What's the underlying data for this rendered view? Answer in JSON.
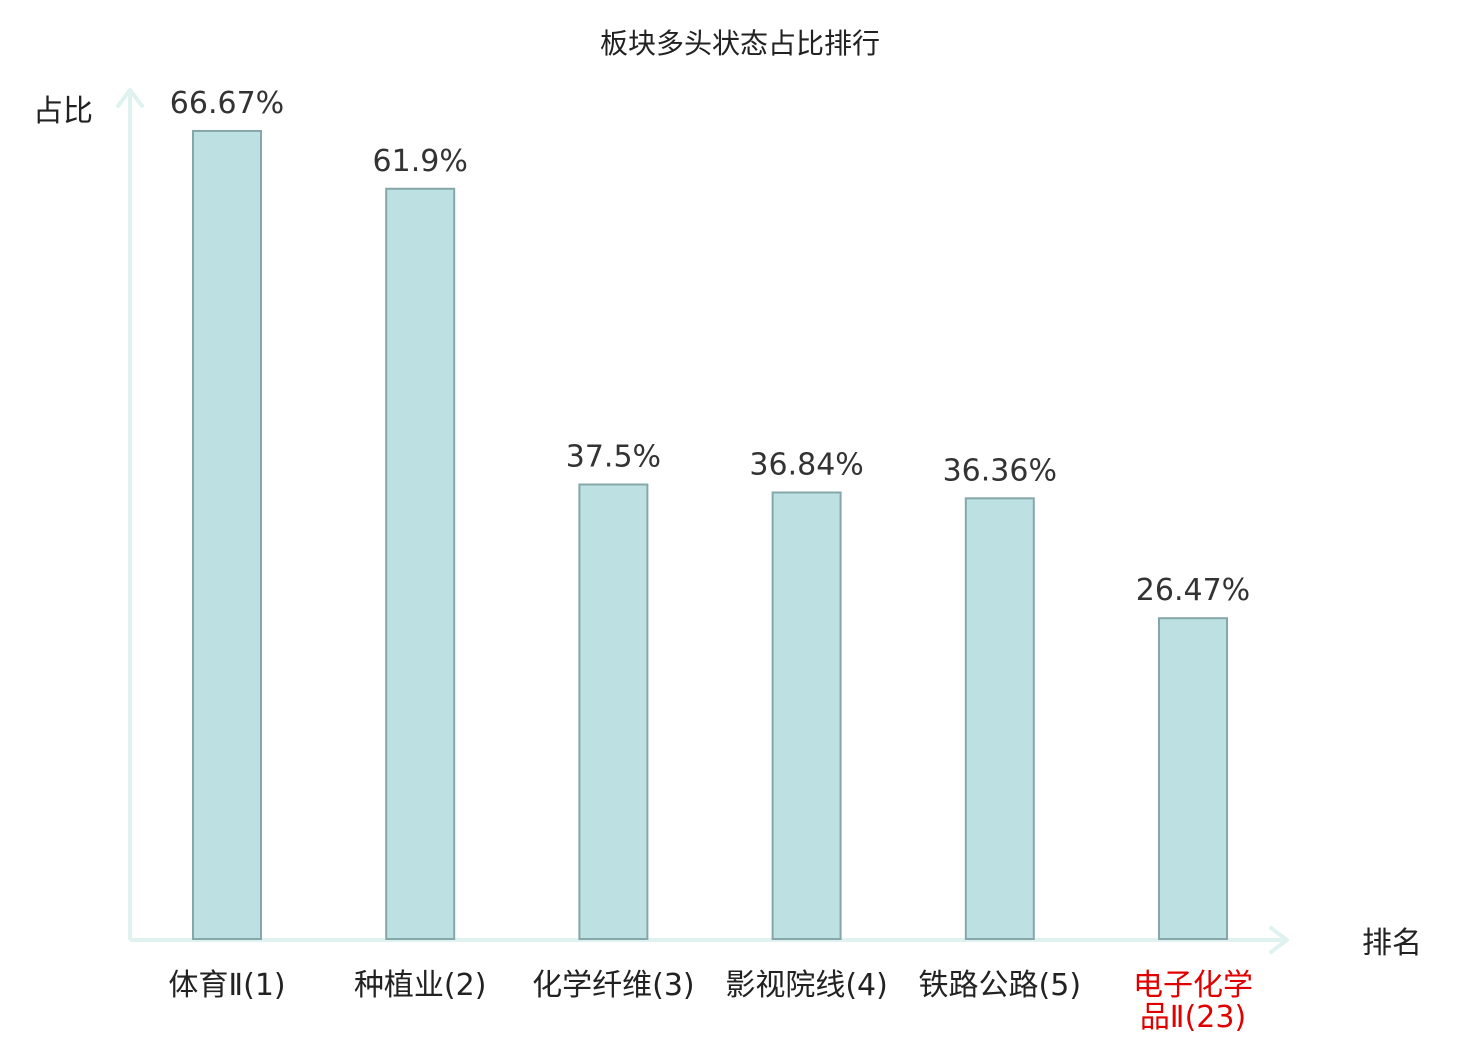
{
  "chart_data": {
    "type": "bar",
    "title": "板块多头状态占比排行",
    "xlabel": "排名",
    "ylabel": "占比",
    "categories": [
      [
        "体育Ⅱ(1)"
      ],
      [
        "种植业(2)"
      ],
      [
        "化学纤维(3)"
      ],
      [
        "影视院线(4)"
      ],
      [
        "铁路公路(5)"
      ],
      [
        "电子化学",
        "品Ⅱ(23)"
      ]
    ],
    "values": [
      66.67,
      61.9,
      37.5,
      36.84,
      36.36,
      26.47
    ],
    "value_labels": [
      "66.67%",
      "61.9%",
      "37.5%",
      "36.84%",
      "36.36%",
      "26.47%"
    ],
    "highlight_index": 5,
    "ylim": [
      0,
      70
    ],
    "grid": false,
    "legend": "none",
    "colors": {
      "bar_fill": "#bde0e3",
      "bar_stroke": "#86a7aa",
      "axis": "#dff2ef",
      "tick_default": "#222222",
      "tick_highlight": "#e00000"
    }
  }
}
